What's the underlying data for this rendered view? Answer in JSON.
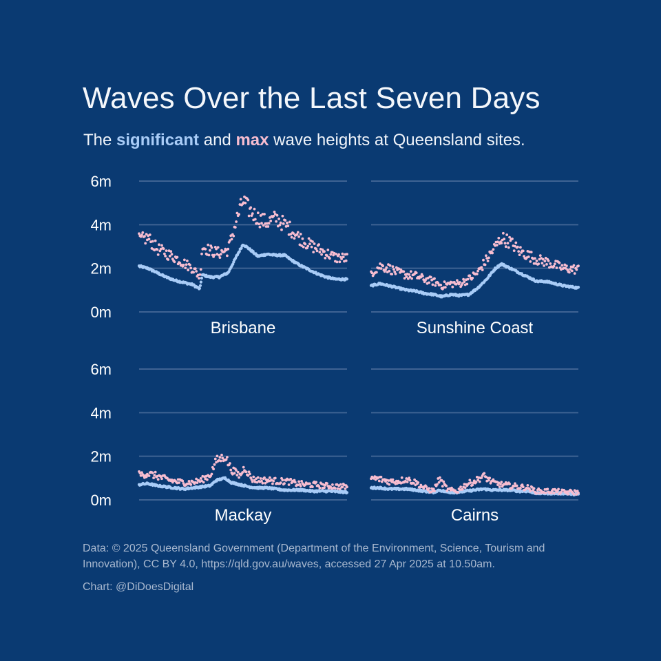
{
  "header": {
    "title": "Waves Over the Last Seven Days",
    "subtitle_pre": "The",
    "subtitle_sig": "significant",
    "subtitle_and": "and",
    "subtitle_max": "max",
    "subtitle_post": "wave heights at Queensland sites."
  },
  "footer": {
    "source": "Data: © 2025 Queensland Government (Department of the Environment, Science, Tourism and Innovation), CC BY 4.0, https://qld.gov.au/waves, accessed 27 Apr 2025 at 10.50am.",
    "credit": "Chart: @DiDoesDigital"
  },
  "colors": {
    "background": "#0a3a72",
    "significant": "#a9ccf7",
    "max": "#f7bdd0",
    "grid": "#3f6393"
  },
  "chart_data": {
    "type": "scatter",
    "layout": "small-multiples 2x2",
    "y_ticks": [
      0,
      2,
      4,
      6
    ],
    "y_tick_labels": [
      "0m",
      "2m",
      "4m",
      "6m"
    ],
    "ylim": [
      0,
      6
    ],
    "x_range_days": [
      0,
      7
    ],
    "panels": [
      {
        "site": "Brisbane",
        "series": [
          {
            "key": "significant",
            "points": [
              [
                0,
                2.1
              ],
              [
                0.3,
                2.0
              ],
              [
                0.6,
                1.8
              ],
              [
                0.9,
                1.6
              ],
              [
                1.2,
                1.45
              ],
              [
                1.5,
                1.35
              ],
              [
                1.8,
                1.25
              ],
              [
                2.05,
                1.05
              ],
              [
                2.12,
                1.7
              ],
              [
                2.4,
                1.6
              ],
              [
                2.7,
                1.6
              ],
              [
                3.0,
                1.8
              ],
              [
                3.3,
                2.6
              ],
              [
                3.5,
                3.1
              ],
              [
                3.7,
                2.9
              ],
              [
                4.0,
                2.55
              ],
              [
                4.3,
                2.65
              ],
              [
                4.6,
                2.6
              ],
              [
                4.9,
                2.6
              ],
              [
                5.1,
                2.4
              ],
              [
                5.4,
                2.15
              ],
              [
                5.7,
                1.95
              ],
              [
                6.0,
                1.75
              ],
              [
                6.3,
                1.6
              ],
              [
                6.6,
                1.5
              ],
              [
                7.0,
                1.5
              ]
            ]
          },
          {
            "key": "max",
            "points": [
              [
                0,
                3.3
              ],
              [
                0.3,
                3.4
              ],
              [
                0.6,
                2.9
              ],
              [
                0.9,
                2.7
              ],
              [
                1.2,
                2.5
              ],
              [
                1.5,
                2.25
              ],
              [
                1.8,
                2.0
              ],
              [
                2.05,
                1.6
              ],
              [
                2.12,
                3.0
              ],
              [
                2.4,
                2.8
              ],
              [
                2.7,
                2.7
              ],
              [
                3.0,
                2.85
              ],
              [
                3.3,
                4.3
              ],
              [
                3.5,
                5.1
              ],
              [
                3.7,
                4.7
              ],
              [
                4.0,
                4.3
              ],
              [
                4.3,
                4.1
              ],
              [
                4.6,
                4.3
              ],
              [
                4.9,
                4.0
              ],
              [
                5.1,
                3.8
              ],
              [
                5.4,
                3.4
              ],
              [
                5.7,
                3.1
              ],
              [
                6.0,
                2.9
              ],
              [
                6.3,
                2.7
              ],
              [
                6.6,
                2.5
              ],
              [
                7.0,
                2.45
              ]
            ]
          }
        ]
      },
      {
        "site": "Sunshine Coast",
        "series": [
          {
            "key": "significant",
            "points": [
              [
                0,
                1.2
              ],
              [
                0.3,
                1.3
              ],
              [
                0.6,
                1.2
              ],
              [
                0.9,
                1.1
              ],
              [
                1.2,
                1.0
              ],
              [
                1.5,
                0.95
              ],
              [
                1.8,
                0.85
              ],
              [
                2.1,
                0.8
              ],
              [
                2.4,
                0.7
              ],
              [
                2.7,
                0.8
              ],
              [
                3.0,
                0.75
              ],
              [
                3.3,
                0.8
              ],
              [
                3.6,
                1.1
              ],
              [
                3.9,
                1.5
              ],
              [
                4.2,
                2.0
              ],
              [
                4.4,
                2.2
              ],
              [
                4.7,
                2.0
              ],
              [
                5.0,
                1.8
              ],
              [
                5.3,
                1.6
              ],
              [
                5.6,
                1.4
              ],
              [
                5.9,
                1.4
              ],
              [
                6.2,
                1.3
              ],
              [
                6.5,
                1.2
              ],
              [
                7.0,
                1.1
              ]
            ]
          },
          {
            "key": "max",
            "points": [
              [
                0,
                1.8
              ],
              [
                0.3,
                2.1
              ],
              [
                0.6,
                2.0
              ],
              [
                0.9,
                1.8
              ],
              [
                1.2,
                1.7
              ],
              [
                1.5,
                1.65
              ],
              [
                1.8,
                1.5
              ],
              [
                2.1,
                1.4
              ],
              [
                2.4,
                1.2
              ],
              [
                2.7,
                1.3
              ],
              [
                3.0,
                1.3
              ],
              [
                3.3,
                1.5
              ],
              [
                3.6,
                1.8
              ],
              [
                3.9,
                2.4
              ],
              [
                4.2,
                3.0
              ],
              [
                4.4,
                3.4
              ],
              [
                4.7,
                3.2
              ],
              [
                5.0,
                2.8
              ],
              [
                5.3,
                2.6
              ],
              [
                5.6,
                2.4
              ],
              [
                5.9,
                2.3
              ],
              [
                6.2,
                2.15
              ],
              [
                6.5,
                2.0
              ],
              [
                7.0,
                1.95
              ]
            ]
          }
        ]
      },
      {
        "site": "Mackay",
        "series": [
          {
            "key": "significant",
            "points": [
              [
                0,
                0.7
              ],
              [
                0.3,
                0.75
              ],
              [
                0.6,
                0.65
              ],
              [
                0.9,
                0.6
              ],
              [
                1.2,
                0.55
              ],
              [
                1.5,
                0.5
              ],
              [
                1.8,
                0.55
              ],
              [
                2.1,
                0.6
              ],
              [
                2.4,
                0.65
              ],
              [
                2.6,
                0.9
              ],
              [
                2.9,
                1.0
              ],
              [
                3.1,
                0.8
              ],
              [
                3.4,
                0.7
              ],
              [
                3.7,
                0.6
              ],
              [
                4.0,
                0.55
              ],
              [
                4.3,
                0.55
              ],
              [
                4.6,
                0.5
              ],
              [
                4.9,
                0.45
              ],
              [
                5.2,
                0.45
              ],
              [
                5.5,
                0.45
              ],
              [
                5.8,
                0.4
              ],
              [
                6.1,
                0.4
              ],
              [
                6.4,
                0.4
              ],
              [
                7.0,
                0.35
              ]
            ]
          },
          {
            "key": "max",
            "points": [
              [
                0,
                1.15
              ],
              [
                0.3,
                1.2
              ],
              [
                0.6,
                1.1
              ],
              [
                0.9,
                0.95
              ],
              [
                1.2,
                0.85
              ],
              [
                1.5,
                0.8
              ],
              [
                1.8,
                0.8
              ],
              [
                2.1,
                0.9
              ],
              [
                2.4,
                1.15
              ],
              [
                2.6,
                1.8
              ],
              [
                2.9,
                2.0
              ],
              [
                3.1,
                1.4
              ],
              [
                3.4,
                1.1
              ],
              [
                3.55,
                1.5
              ],
              [
                3.8,
                0.95
              ],
              [
                4.1,
                0.9
              ],
              [
                4.4,
                0.9
              ],
              [
                4.7,
                0.85
              ],
              [
                5.0,
                0.85
              ],
              [
                5.3,
                0.75
              ],
              [
                5.6,
                0.7
              ],
              [
                5.9,
                0.7
              ],
              [
                6.2,
                0.65
              ],
              [
                7.0,
                0.6
              ]
            ]
          }
        ]
      },
      {
        "site": "Cairns",
        "series": [
          {
            "key": "significant",
            "points": [
              [
                0,
                0.55
              ],
              [
                0.3,
                0.55
              ],
              [
                0.6,
                0.5
              ],
              [
                0.9,
                0.5
              ],
              [
                1.2,
                0.5
              ],
              [
                1.5,
                0.45
              ],
              [
                1.8,
                0.4
              ],
              [
                2.1,
                0.35
              ],
              [
                2.3,
                0.45
              ],
              [
                2.6,
                0.35
              ],
              [
                2.9,
                0.35
              ],
              [
                3.2,
                0.4
              ],
              [
                3.5,
                0.45
              ],
              [
                3.8,
                0.5
              ],
              [
                4.1,
                0.45
              ],
              [
                4.4,
                0.45
              ],
              [
                4.7,
                0.45
              ],
              [
                5.0,
                0.4
              ],
              [
                5.3,
                0.4
              ],
              [
                5.6,
                0.3
              ],
              [
                5.9,
                0.3
              ],
              [
                6.2,
                0.3
              ],
              [
                6.5,
                0.3
              ],
              [
                7.0,
                0.25
              ]
            ]
          },
          {
            "key": "max",
            "points": [
              [
                0,
                1.0
              ],
              [
                0.3,
                0.95
              ],
              [
                0.6,
                0.85
              ],
              [
                0.9,
                0.85
              ],
              [
                1.2,
                0.95
              ],
              [
                1.5,
                0.8
              ],
              [
                1.8,
                0.55
              ],
              [
                2.1,
                0.4
              ],
              [
                2.3,
                0.95
              ],
              [
                2.6,
                0.45
              ],
              [
                2.9,
                0.4
              ],
              [
                3.2,
                0.7
              ],
              [
                3.5,
                0.85
              ],
              [
                3.8,
                1.1
              ],
              [
                4.1,
                0.8
              ],
              [
                4.4,
                0.7
              ],
              [
                4.7,
                0.65
              ],
              [
                5.0,
                0.6
              ],
              [
                5.3,
                0.55
              ],
              [
                5.6,
                0.4
              ],
              [
                5.9,
                0.4
              ],
              [
                6.2,
                0.4
              ],
              [
                6.5,
                0.35
              ],
              [
                7.0,
                0.35
              ]
            ]
          }
        ]
      }
    ]
  }
}
